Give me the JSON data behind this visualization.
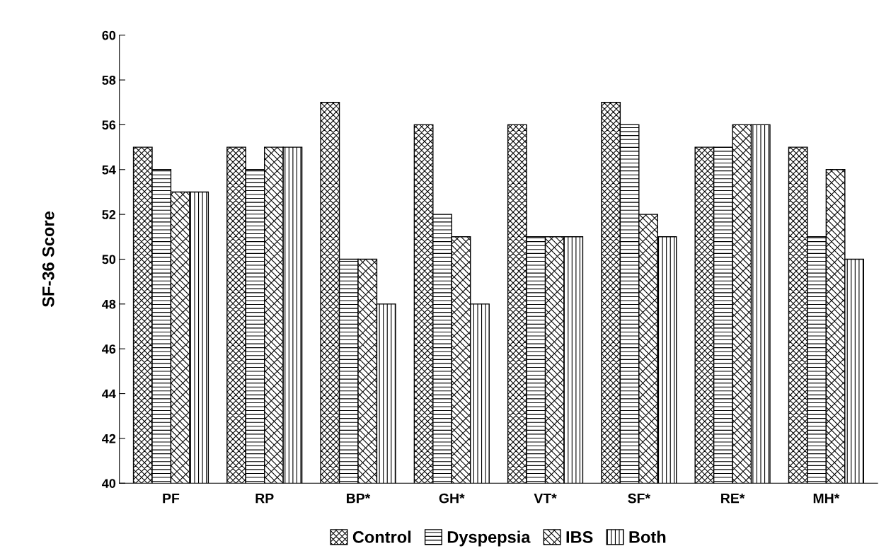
{
  "chart_data": {
    "type": "bar",
    "ylabel": "SF-36 Score",
    "categories": [
      "PF",
      "RP",
      "BP*",
      "GH*",
      "VT*",
      "SF*",
      "RE*",
      "MH*"
    ],
    "series": [
      {
        "name": "Control",
        "color": "#000000",
        "values": [
          55,
          55,
          57,
          56,
          56,
          57,
          55,
          55
        ]
      },
      {
        "name": "Dyspepsia",
        "color": "#000000",
        "values": [
          54,
          54,
          50,
          52,
          51,
          56,
          55,
          51
        ]
      },
      {
        "name": "IBS",
        "color": "#000000",
        "values": [
          53,
          55,
          50,
          51,
          51,
          52,
          56,
          54
        ]
      },
      {
        "name": "Both",
        "color": "#000000",
        "values": [
          53,
          55,
          48,
          48,
          51,
          51,
          56,
          50
        ]
      }
    ],
    "ylim": [
      40,
      60
    ],
    "yticks": [
      40,
      42,
      44,
      46,
      48,
      50,
      52,
      54,
      56,
      58,
      60
    ],
    "legend": "bottom",
    "grid": false
  }
}
